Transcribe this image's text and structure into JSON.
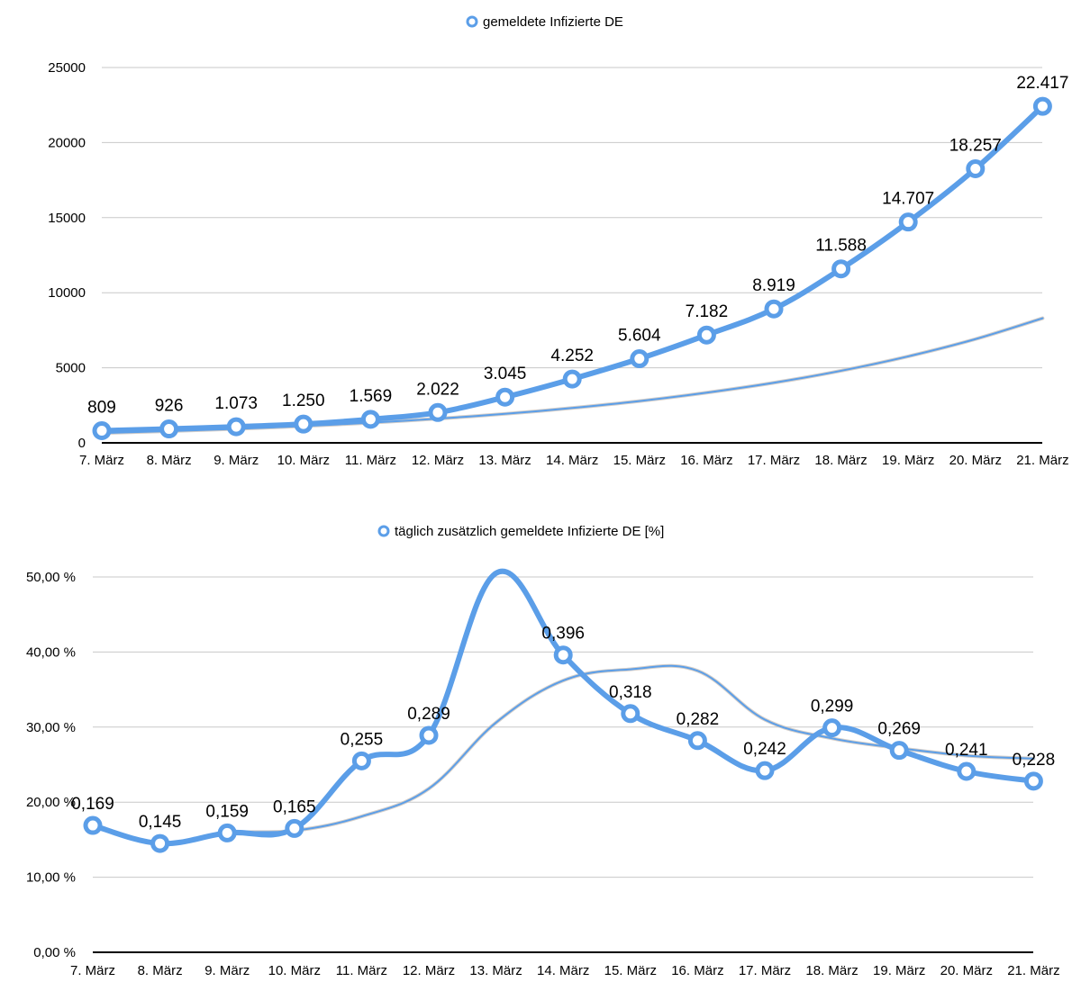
{
  "chart_data": [
    {
      "type": "line",
      "legend_position": "top-center",
      "grid": true,
      "ylim": [
        0,
        25000
      ],
      "yticks": [
        "0",
        "5000",
        "10000",
        "15000",
        "20000",
        "25000"
      ],
      "ytick_values": [
        0,
        5000,
        10000,
        15000,
        20000,
        25000
      ],
      "categories": [
        "7. März",
        "8. März",
        "9. März",
        "10. März",
        "11. März",
        "12. März",
        "13. März",
        "14. März",
        "15. März",
        "16. März",
        "17. März",
        "18. März",
        "19. März",
        "20. März",
        "21. März"
      ],
      "series": [
        {
          "name": "gemeldete Infizierte DE",
          "color": "#5b9ee8",
          "values": [
            809,
            926,
            1073,
            1250,
            1569,
            2022,
            3045,
            4252,
            5604,
            7182,
            8919,
            11588,
            14707,
            18257,
            22417
          ],
          "labels": [
            "809",
            "926",
            "1.073",
            "1.250",
            "1.569",
            "2.022",
            "3.045",
            "4.252",
            "5.604",
            "7.182",
            "8.919",
            "11.588",
            "14.707",
            "18.257",
            "22.417"
          ]
        }
      ],
      "trendline": {
        "type": "exponential",
        "values": [
          650,
          780,
          930,
          1120,
          1340,
          1610,
          1930,
          2320,
          2780,
          3340,
          4000,
          4800,
          5760,
          6910,
          8300
        ]
      }
    },
    {
      "type": "line",
      "legend_position": "top-center",
      "grid": true,
      "ylim": [
        0,
        50
      ],
      "yticks": [
        "0,00 %",
        "10,00 %",
        "20,00 %",
        "30,00 %",
        "40,00 %",
        "50,00 %"
      ],
      "ytick_values": [
        0,
        10,
        20,
        30,
        40,
        50
      ],
      "categories": [
        "7. März",
        "8. März",
        "9. März",
        "10. März",
        "11. März",
        "12. März",
        "13. März",
        "14. März",
        "15. März",
        "16. März",
        "17. März",
        "18. März",
        "19. März",
        "20. März",
        "21. März"
      ],
      "series": [
        {
          "name": "täglich zusätzlich gemeldete Infizierte DE [%]",
          "color": "#5b9ee8",
          "values": [
            16.9,
            14.5,
            15.9,
            16.5,
            25.5,
            28.9,
            50.5,
            39.6,
            31.8,
            28.2,
            24.2,
            29.9,
            26.9,
            24.1,
            22.8
          ],
          "labels": [
            "0,169",
            "0,145",
            "0,159",
            "0,165",
            "0,255",
            "0,289",
            "",
            "0,396",
            "0,318",
            "0,282",
            "0,242",
            "0,299",
            "0,269",
            "0,241",
            "0,228"
          ]
        }
      ],
      "trendline": {
        "type": "moving average",
        "values": [
          16.9,
          14.5,
          15.9,
          16.2,
          18.1,
          21.8,
          30.6,
          36.2,
          37.7,
          37.5,
          31.0,
          28.5,
          27.2,
          26.2,
          25.8
        ]
      }
    }
  ]
}
